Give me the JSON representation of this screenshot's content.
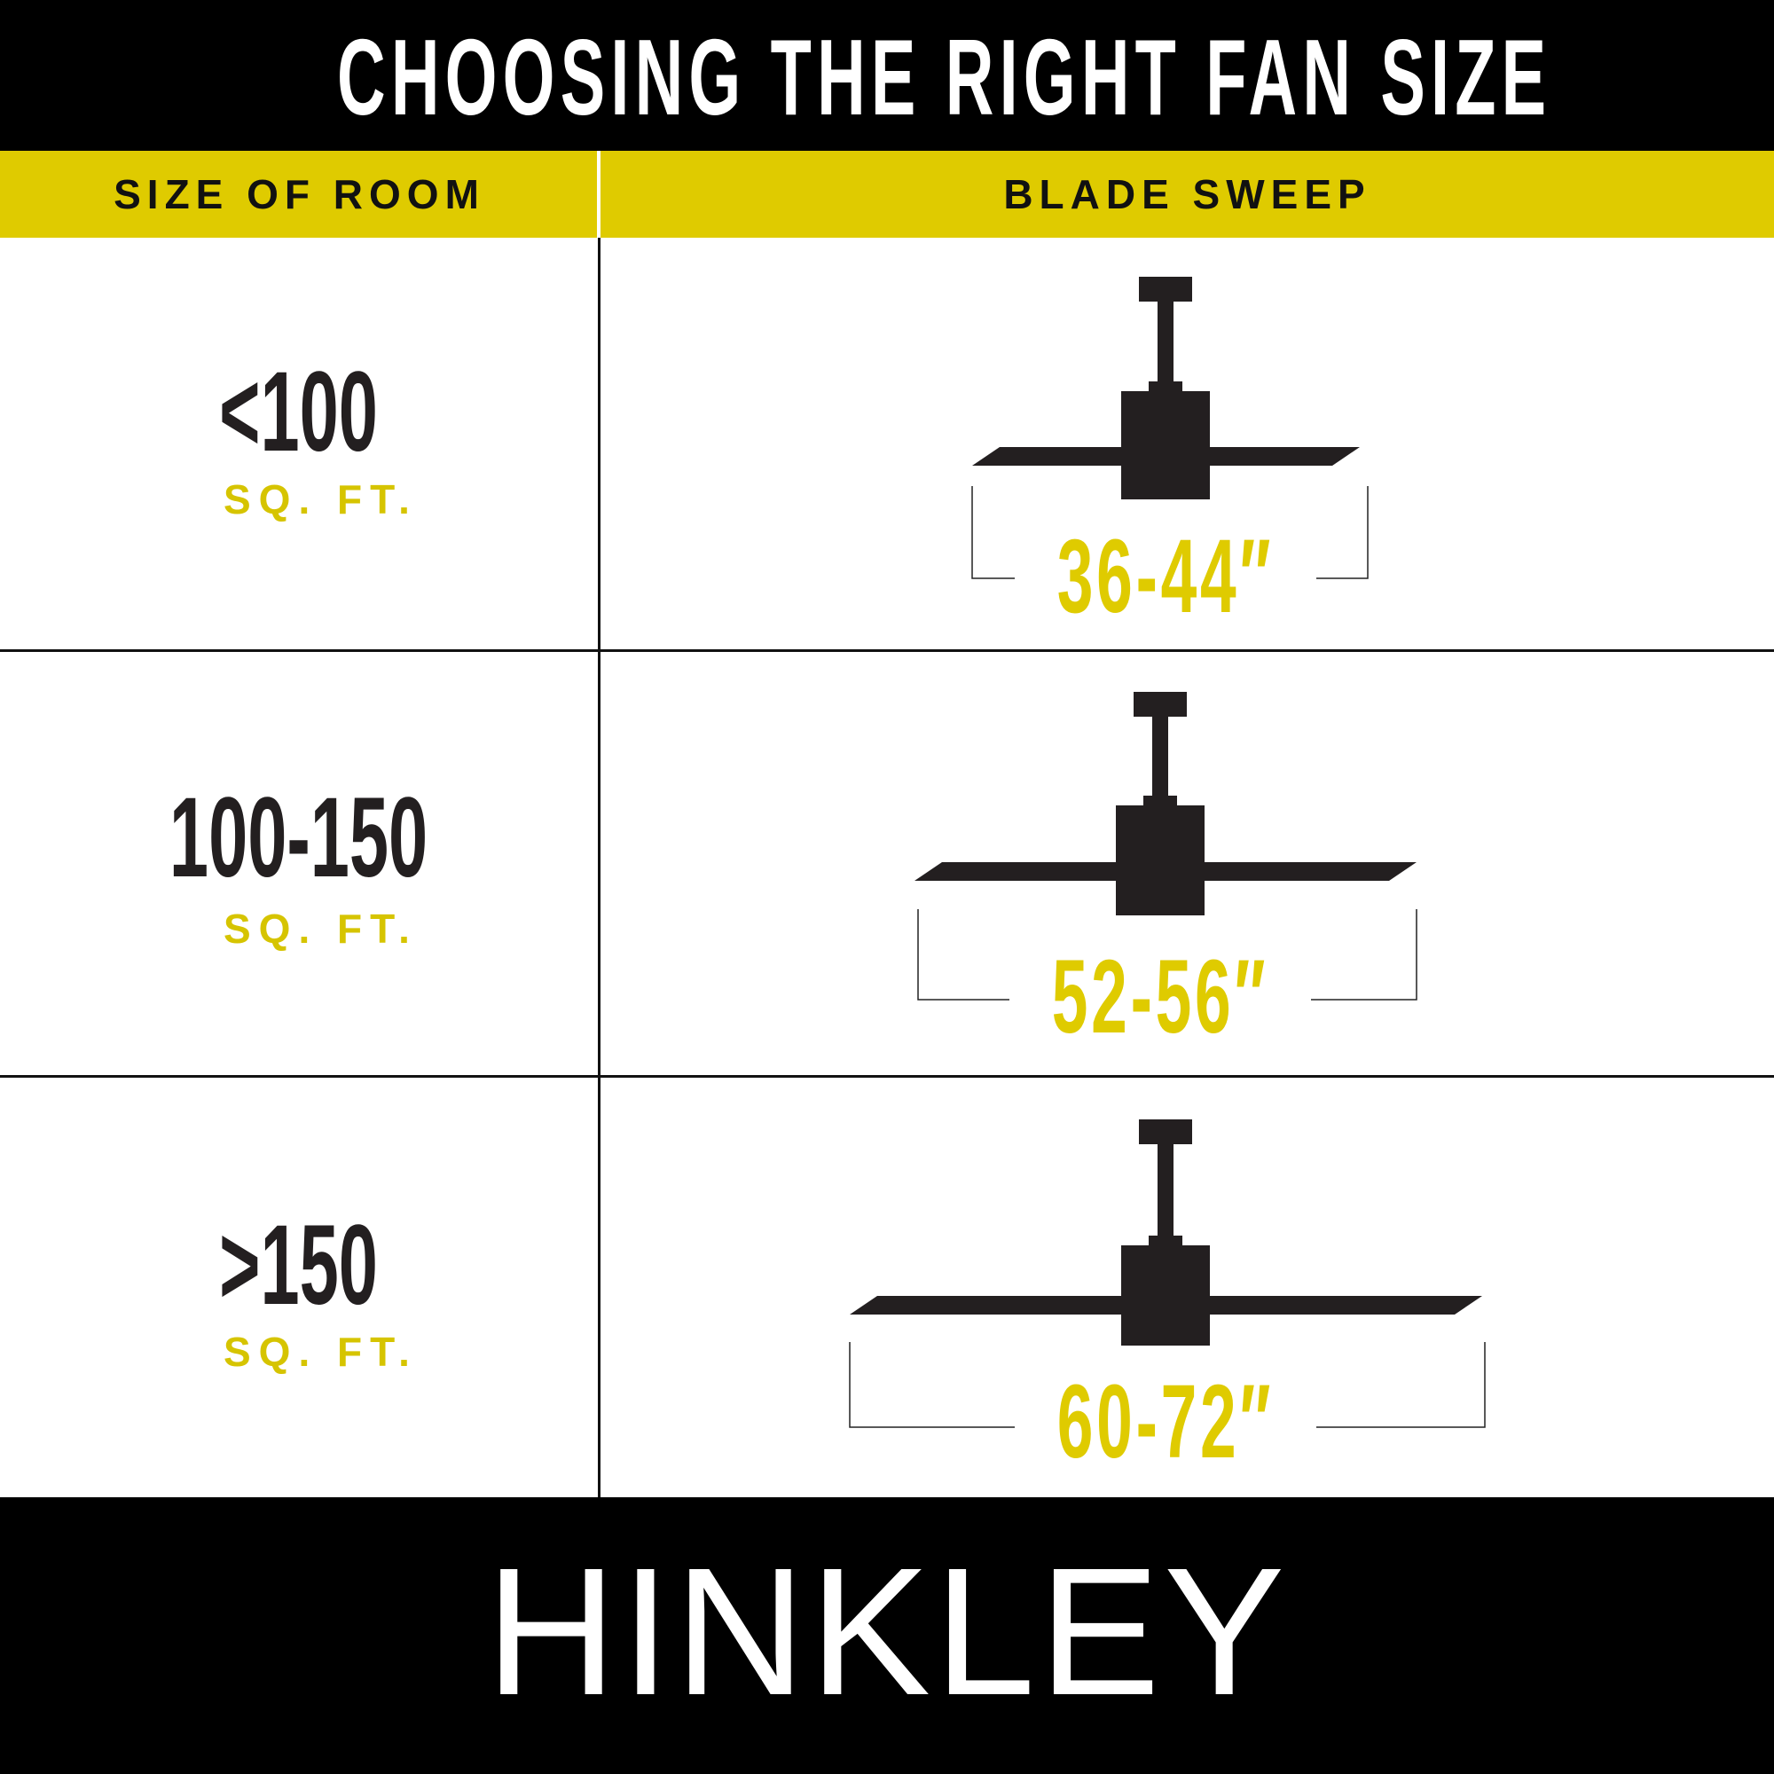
{
  "title": "CHOOSING THE RIGHT FAN SIZE",
  "header": {
    "room_col": "SIZE OF ROOM",
    "sweep_col": "BLADE SWEEP"
  },
  "rows": [
    {
      "room_size": "<100",
      "unit": "SQ. FT.",
      "blade_sweep": "36-44″"
    },
    {
      "room_size": "100-150",
      "unit": "SQ. FT.",
      "blade_sweep": "52-56″"
    },
    {
      "room_size": ">150",
      "unit": "SQ. FT.",
      "blade_sweep": "60-72″"
    }
  ],
  "brand": "HINKLEY",
  "colors": {
    "accent_yellow": "#dfcb00",
    "black": "#000000",
    "fan": "#231f20"
  }
}
